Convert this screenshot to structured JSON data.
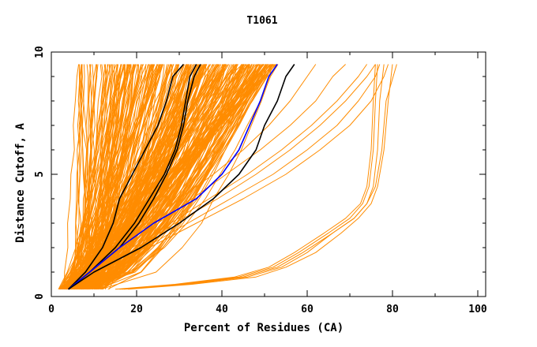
{
  "chart_data": {
    "type": "line",
    "title": "T1061",
    "xlabel": "Percent of Residues (CA)",
    "ylabel": "Distance Cutoff, A",
    "xlim": [
      0,
      101
    ],
    "ylim": [
      0,
      10
    ],
    "x_ticks": [
      "0",
      "20",
      "40",
      "60",
      "80",
      "100"
    ],
    "x_tick_values": [
      0,
      20,
      40,
      60,
      80,
      100
    ],
    "y_ticks": [
      "0",
      "5",
      "10"
    ],
    "y_tick_values": [
      0,
      5,
      10
    ],
    "grid": false,
    "legend": "none",
    "colors": {
      "background_models": "#ff8c00",
      "highlight_black": "#000000",
      "highlight_blue": "#0000ff"
    },
    "y_levels": [
      0.3,
      1,
      2,
      3,
      4,
      5,
      6,
      7,
      8,
      9,
      9.5
    ],
    "background_models": {
      "count": 300,
      "x_at_0_3_range": [
        2,
        14
      ],
      "x_at_9_5_range": [
        6,
        53
      ]
    },
    "outlier_series": [
      {
        "x": [
          16,
          30,
          44,
          52,
          58,
          65,
          70,
          73,
          74.5,
          75.5,
          76,
          76.5
        ]
      },
      {
        "x": [
          17,
          32,
          46,
          54,
          60,
          66,
          71,
          74,
          75.5,
          76.5,
          77,
          78
        ]
      },
      {
        "x": [
          15,
          29,
          43,
          51,
          57,
          64,
          69,
          72.5,
          74,
          75,
          75.5,
          76
        ]
      },
      {
        "x": [
          18,
          33,
          48,
          55,
          62,
          68,
          72,
          75,
          76.5,
          78,
          79,
          80
        ]
      },
      {
        "x": [
          16.5,
          31,
          45,
          53,
          59,
          66,
          71,
          74,
          76,
          77.5,
          78.5,
          81
        ]
      }
    ],
    "outlier_y": [
      0.3,
      0.5,
      0.8,
      1.2,
      1.8,
      2.6,
      3.2,
      3.8,
      4.5,
      6.0,
      8.0,
      9.5
    ],
    "mid_band_series": [
      {
        "x": [
          6,
          9,
          15,
          22,
          30,
          38,
          45,
          51,
          56,
          60,
          62
        ]
      },
      {
        "x": [
          6,
          10,
          17,
          25,
          33,
          41,
          49,
          56,
          62,
          66,
          69
        ]
      },
      {
        "x": [
          6,
          11,
          19,
          28,
          37,
          46,
          54,
          61,
          67,
          72,
          74
        ]
      },
      {
        "x": [
          7,
          12,
          20,
          29,
          39,
          48,
          56,
          63,
          69,
          74,
          76
        ]
      },
      {
        "x": [
          7,
          13,
          22,
          32,
          42,
          52,
          60,
          67,
          72,
          76,
          77
        ]
      },
      {
        "x": [
          7,
          14,
          23,
          34,
          45,
          55,
          63,
          70,
          75,
          78,
          79
        ]
      }
    ],
    "highlight_series": [
      {
        "color": "#000000",
        "x": [
          4,
          8,
          12,
          14.5,
          16,
          19,
          22,
          25,
          27,
          28.5,
          31
        ]
      },
      {
        "color": "#000000",
        "x": [
          4,
          9,
          15,
          19.5,
          23,
          26.5,
          29,
          30.5,
          31.5,
          32.5,
          34
        ]
      },
      {
        "color": "#000000",
        "x": [
          4,
          9,
          16,
          20.5,
          24,
          27,
          29.5,
          31,
          32,
          33.5,
          35
        ]
      },
      {
        "color": "#0000ff",
        "x": [
          4,
          9,
          16,
          24,
          34,
          40,
          44,
          46.5,
          49,
          51,
          53
        ]
      },
      {
        "color": "#000000",
        "x": [
          4,
          10,
          21,
          30,
          38,
          44,
          48,
          50,
          53,
          55,
          57
        ]
      }
    ]
  }
}
